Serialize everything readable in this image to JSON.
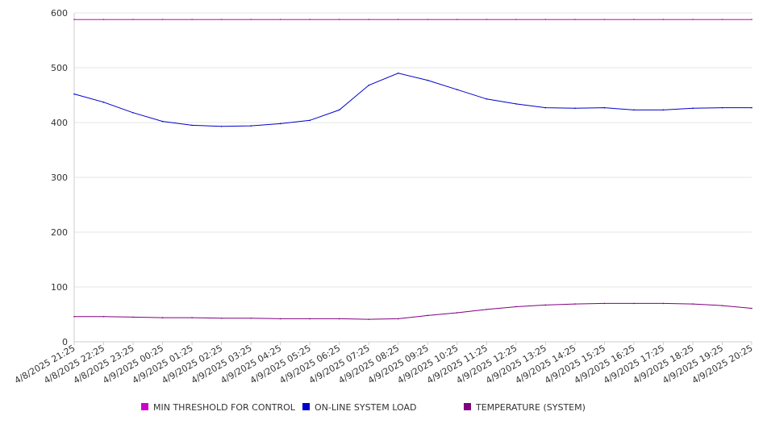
{
  "chart_data": {
    "type": "line",
    "title": "",
    "xlabel": "",
    "ylabel": "",
    "ylim": [
      0,
      600
    ],
    "yticks": [
      0,
      100,
      200,
      300,
      400,
      500,
      600
    ],
    "grid": true,
    "legend_position": "bottom",
    "x": [
      "4/8/2025 21:25",
      "4/8/2025 22:25",
      "4/8/2025 23:25",
      "4/9/2025 00:25",
      "4/9/2025 01:25",
      "4/9/2025 02:25",
      "4/9/2025 03:25",
      "4/9/2025 04:25",
      "4/9/2025 05:25",
      "4/9/2025 06:25",
      "4/9/2025 07:25",
      "4/9/2025 08:25",
      "4/9/2025 09:25",
      "4/9/2025 10:25",
      "4/9/2025 11:25",
      "4/9/2025 12:25",
      "4/9/2025 13:25",
      "4/9/2025 14:25",
      "4/9/2025 15:25",
      "4/9/2025 16:25",
      "4/9/2025 17:25",
      "4/9/2025 18:25",
      "4/9/2025 19:25",
      "4/9/2025 20:25"
    ],
    "series": [
      {
        "name": "MIN THRESHOLD FOR CONTROL",
        "color": "#cc00cc",
        "values": [
          588,
          588,
          588,
          588,
          588,
          588,
          588,
          588,
          588,
          588,
          588,
          588,
          588,
          588,
          588,
          588,
          588,
          588,
          588,
          588,
          588,
          588,
          588,
          588
        ]
      },
      {
        "name": "ON-LINE SYSTEM LOAD",
        "color": "#0000cc",
        "values": [
          452,
          437,
          418,
          402,
          395,
          393,
          394,
          398,
          404,
          423,
          468,
          490,
          477,
          460,
          443,
          434,
          427,
          426,
          427,
          423,
          423,
          426,
          427,
          427
        ]
      },
      {
        "name": "TEMPERATURE (SYSTEM)",
        "color": "#800080",
        "values": [
          46,
          46,
          45,
          44,
          44,
          43,
          43,
          42,
          42,
          42,
          41,
          42,
          48,
          53,
          59,
          64,
          67,
          69,
          70,
          70,
          70,
          69,
          66,
          61
        ]
      }
    ]
  }
}
